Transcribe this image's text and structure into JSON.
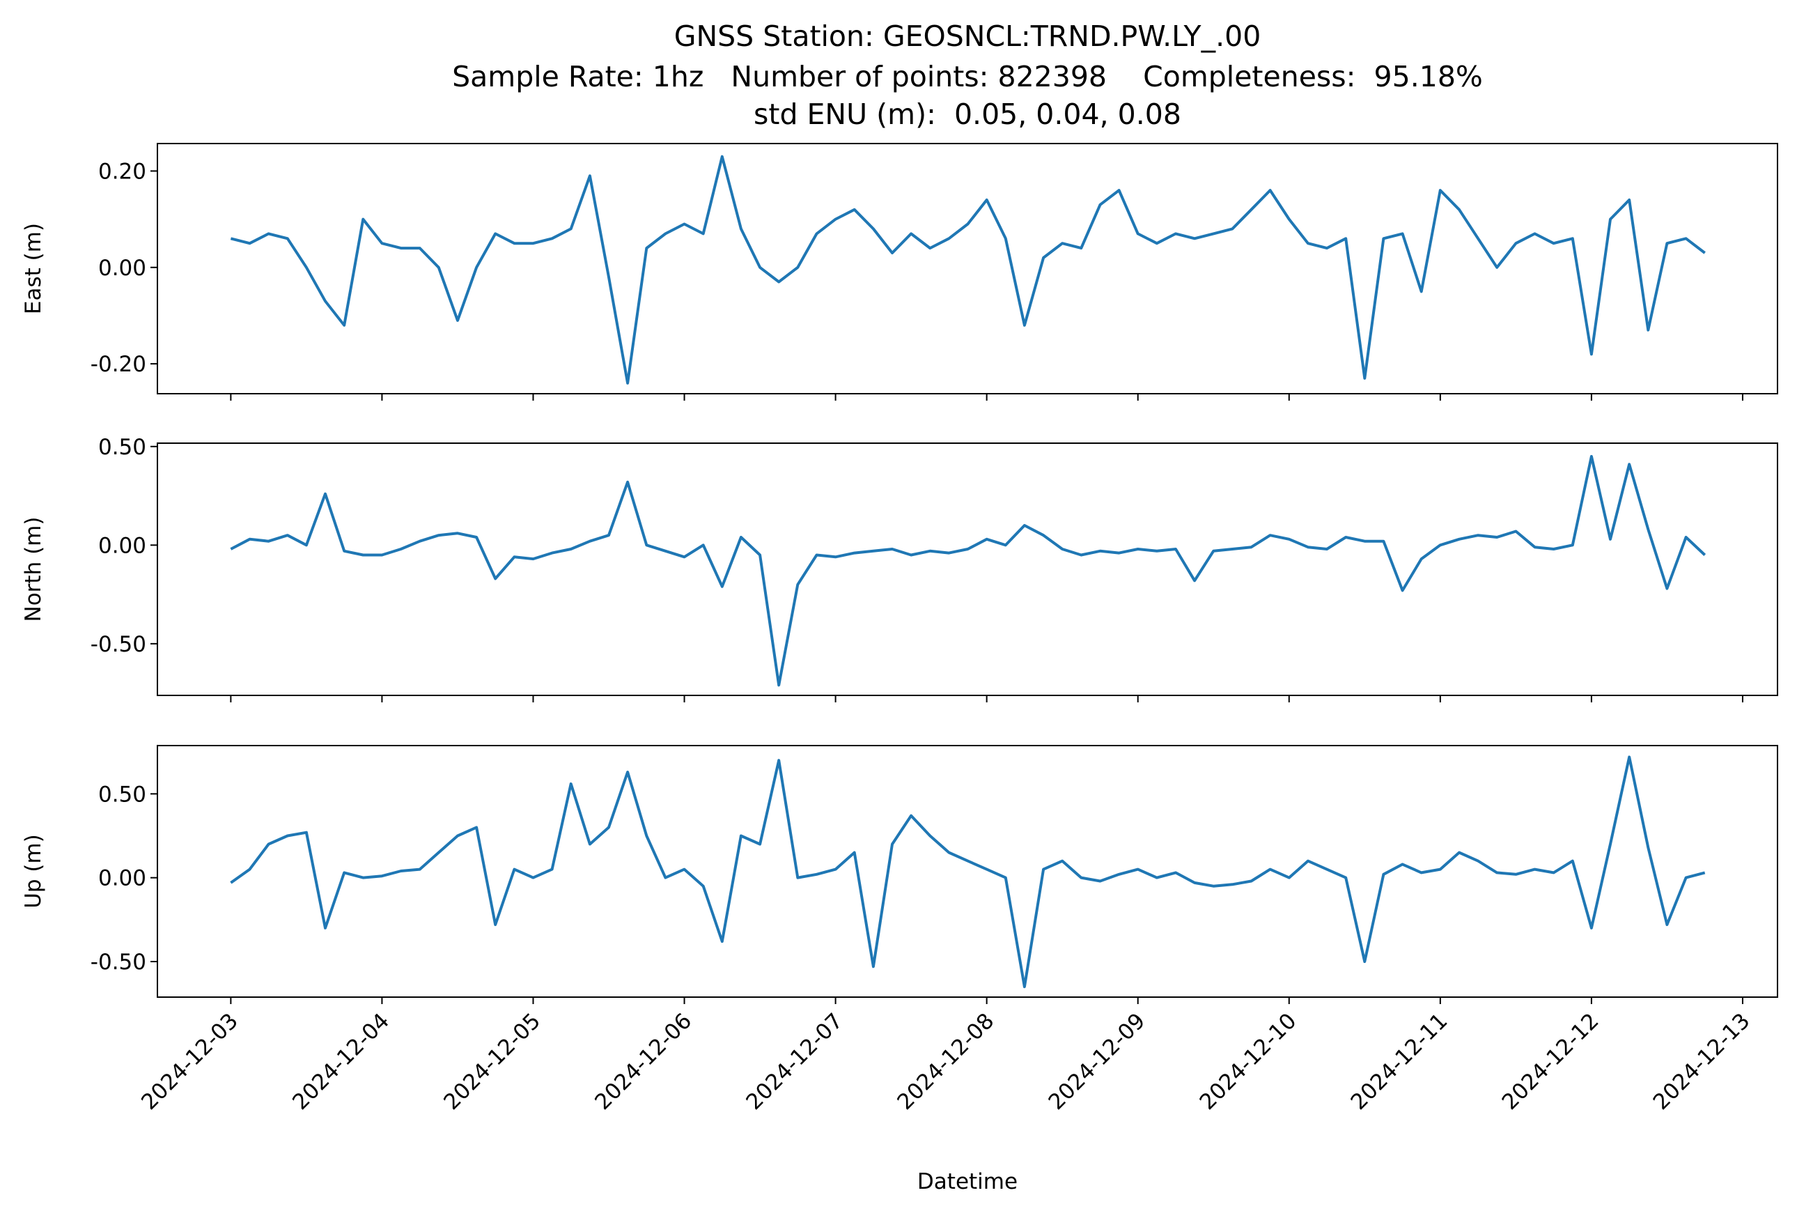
{
  "chart_data": {
    "type": "line",
    "title": [
      "GNSS Station: GEOSNCL:TRND.PW.LY_.00",
      "Sample Rate: 1hz   Number of points: 822398    Completeness:  95.18%",
      "std ENU (m):  0.05, 0.04, 0.08"
    ],
    "xlabel": "Datetime",
    "x": [
      "2024-12-03T00:00",
      "2024-12-03T03:00",
      "2024-12-03T06:00",
      "2024-12-03T09:00",
      "2024-12-03T12:00",
      "2024-12-03T15:00",
      "2024-12-03T18:00",
      "2024-12-03T21:00",
      "2024-12-04T00:00",
      "2024-12-04T03:00",
      "2024-12-04T06:00",
      "2024-12-04T09:00",
      "2024-12-04T12:00",
      "2024-12-04T15:00",
      "2024-12-04T18:00",
      "2024-12-04T21:00",
      "2024-12-05T00:00",
      "2024-12-05T03:00",
      "2024-12-05T06:00",
      "2024-12-05T09:00",
      "2024-12-05T12:00",
      "2024-12-05T15:00",
      "2024-12-05T18:00",
      "2024-12-05T21:00",
      "2024-12-06T00:00",
      "2024-12-06T03:00",
      "2024-12-06T06:00",
      "2024-12-06T09:00",
      "2024-12-06T12:00",
      "2024-12-06T15:00",
      "2024-12-06T18:00",
      "2024-12-06T21:00",
      "2024-12-07T00:00",
      "2024-12-07T03:00",
      "2024-12-07T06:00",
      "2024-12-07T09:00",
      "2024-12-07T12:00",
      "2024-12-07T15:00",
      "2024-12-07T18:00",
      "2024-12-07T21:00",
      "2024-12-08T00:00",
      "2024-12-08T03:00",
      "2024-12-08T06:00",
      "2024-12-08T09:00",
      "2024-12-08T12:00",
      "2024-12-08T15:00",
      "2024-12-08T18:00",
      "2024-12-08T21:00",
      "2024-12-09T00:00",
      "2024-12-09T03:00",
      "2024-12-09T06:00",
      "2024-12-09T09:00",
      "2024-12-09T12:00",
      "2024-12-09T15:00",
      "2024-12-09T18:00",
      "2024-12-09T21:00",
      "2024-12-10T00:00",
      "2024-12-10T03:00",
      "2024-12-10T06:00",
      "2024-12-10T09:00",
      "2024-12-10T12:00",
      "2024-12-10T15:00",
      "2024-12-10T18:00",
      "2024-12-10T21:00",
      "2024-12-11T00:00",
      "2024-12-11T03:00",
      "2024-12-11T06:00",
      "2024-12-11T09:00",
      "2024-12-11T12:00",
      "2024-12-11T15:00",
      "2024-12-11T18:00",
      "2024-12-11T21:00",
      "2024-12-12T00:00",
      "2024-12-12T03:00",
      "2024-12-12T06:00",
      "2024-12-12T09:00",
      "2024-12-12T12:00",
      "2024-12-12T15:00",
      "2024-12-12T18:00"
    ],
    "xlim": [
      "2024-12-02T12:21",
      "2024-12-13T05:32"
    ],
    "xticks": [
      "2024-12-03",
      "2024-12-04",
      "2024-12-05",
      "2024-12-06",
      "2024-12-07",
      "2024-12-08",
      "2024-12-09",
      "2024-12-10",
      "2024-12-11",
      "2024-12-12",
      "2024-12-13"
    ],
    "panels": [
      {
        "ylabel": "East (m)",
        "color": "#1f77b4",
        "ylim": [
          -0.262,
          0.257
        ],
        "yticks": [
          {
            "value": -0.2,
            "label": "-0.20"
          },
          {
            "value": 0,
            "label": "0.00"
          },
          {
            "value": 0.2,
            "label": "0.20"
          }
        ],
        "values": [
          0.06,
          0.05,
          0.07,
          0.06,
          0.0,
          -0.07,
          -0.12,
          0.1,
          0.05,
          0.04,
          0.04,
          0.0,
          -0.11,
          0.0,
          0.07,
          0.05,
          0.05,
          0.06,
          0.08,
          0.19,
          -0.02,
          -0.24,
          0.04,
          0.07,
          0.09,
          0.07,
          0.23,
          0.08,
          0.0,
          -0.03,
          0.0,
          0.07,
          0.1,
          0.12,
          0.08,
          0.03,
          0.07,
          0.04,
          0.06,
          0.09,
          0.14,
          0.06,
          -0.12,
          0.02,
          0.05,
          0.04,
          0.13,
          0.16,
          0.07,
          0.05,
          0.07,
          0.06,
          0.07,
          0.08,
          0.12,
          0.16,
          0.1,
          0.05,
          0.04,
          0.06,
          -0.23,
          0.06,
          0.07,
          -0.05,
          0.16,
          0.12,
          0.06,
          0.0,
          0.05,
          0.07,
          0.05,
          0.06,
          -0.18,
          0.1,
          0.14,
          -0.13,
          0.05,
          0.06,
          0.03
        ]
      },
      {
        "ylabel": "North (m)",
        "color": "#1f77b4",
        "ylim": [
          -0.762,
          0.517
        ],
        "yticks": [
          {
            "value": -0.5,
            "label": "-0.50"
          },
          {
            "value": 0,
            "label": "0.00"
          },
          {
            "value": 0.5,
            "label": "0.50"
          }
        ],
        "values": [
          -0.02,
          0.03,
          0.02,
          0.05,
          0.0,
          0.26,
          -0.03,
          -0.05,
          -0.05,
          -0.02,
          0.02,
          0.05,
          0.06,
          0.04,
          -0.17,
          -0.06,
          -0.07,
          -0.04,
          -0.02,
          0.02,
          0.05,
          0.32,
          0.0,
          -0.03,
          -0.06,
          0.0,
          -0.21,
          0.04,
          -0.05,
          -0.71,
          -0.2,
          -0.05,
          -0.06,
          -0.04,
          -0.03,
          -0.02,
          -0.05,
          -0.03,
          -0.04,
          -0.02,
          0.03,
          0.0,
          0.1,
          0.05,
          -0.02,
          -0.05,
          -0.03,
          -0.04,
          -0.02,
          -0.03,
          -0.02,
          -0.18,
          -0.03,
          -0.02,
          -0.01,
          0.05,
          0.03,
          -0.01,
          -0.02,
          0.04,
          0.02,
          0.02,
          -0.23,
          -0.07,
          0.0,
          0.03,
          0.05,
          0.04,
          0.07,
          -0.01,
          -0.02,
          0.0,
          0.45,
          0.03,
          0.41,
          0.08,
          -0.22,
          0.04,
          -0.05
        ]
      },
      {
        "ylabel": "Up (m)",
        "color": "#1f77b4",
        "ylim": [
          -0.712,
          0.788
        ],
        "yticks": [
          {
            "value": -0.5,
            "label": "-0.50"
          },
          {
            "value": 0,
            "label": "0.00"
          },
          {
            "value": 0.5,
            "label": "0.50"
          }
        ],
        "values": [
          -0.03,
          0.05,
          0.2,
          0.25,
          0.27,
          -0.3,
          0.03,
          0.0,
          0.01,
          0.04,
          0.05,
          0.15,
          0.25,
          0.3,
          -0.28,
          0.05,
          0.0,
          0.05,
          0.56,
          0.2,
          0.3,
          0.63,
          0.25,
          0.0,
          0.05,
          -0.05,
          -0.38,
          0.25,
          0.2,
          0.7,
          0.0,
          0.02,
          0.05,
          0.15,
          -0.53,
          0.2,
          0.37,
          0.25,
          0.15,
          0.1,
          0.05,
          0.0,
          -0.65,
          0.05,
          0.1,
          0.0,
          -0.02,
          0.02,
          0.05,
          0.0,
          0.03,
          -0.03,
          -0.05,
          -0.04,
          -0.02,
          0.05,
          0.0,
          0.1,
          0.05,
          0.0,
          -0.5,
          0.02,
          0.08,
          0.03,
          0.05,
          0.15,
          0.1,
          0.03,
          0.02,
          0.05,
          0.03,
          0.1,
          -0.3,
          0.2,
          0.72,
          0.18,
          -0.28,
          0.0,
          0.03
        ]
      }
    ]
  }
}
